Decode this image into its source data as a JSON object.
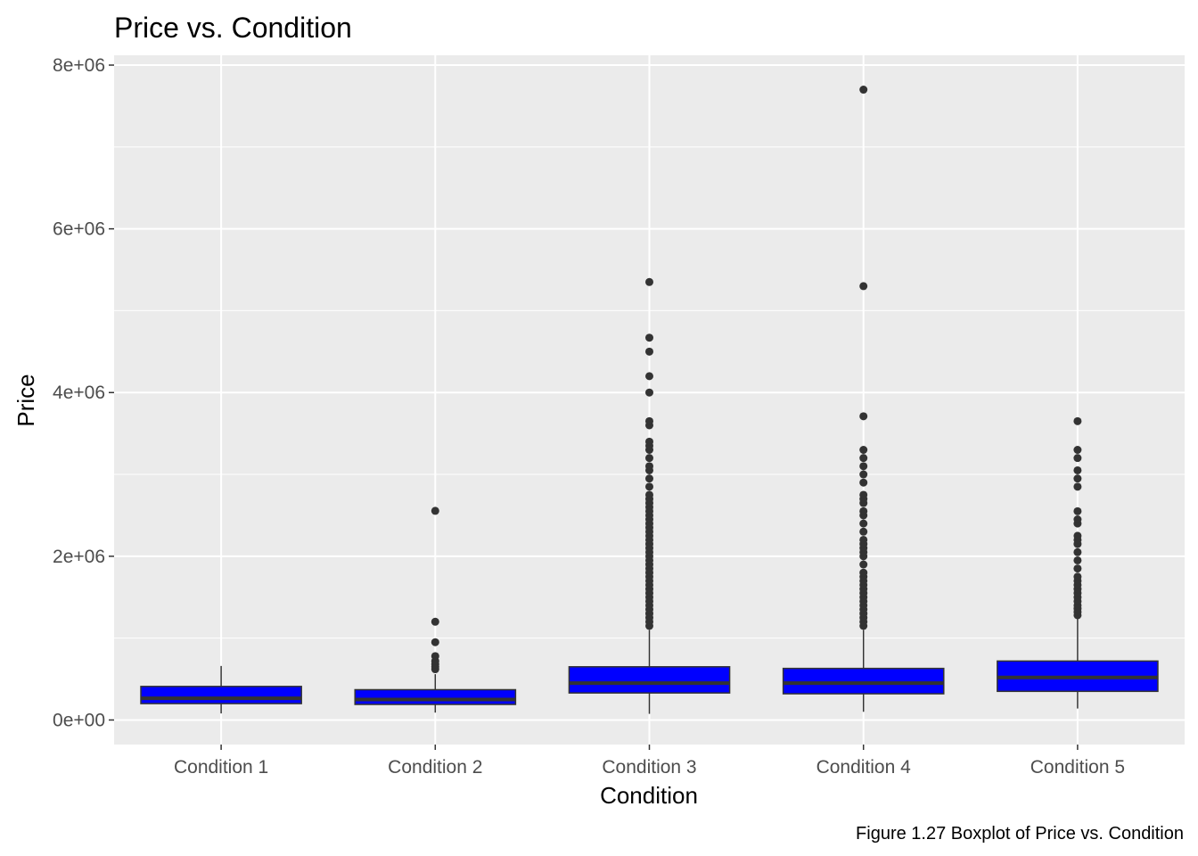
{
  "chart_data": {
    "type": "boxplot",
    "title": "Price vs. Condition",
    "xlabel": "Condition",
    "ylabel": "Price",
    "caption": "Figure 1.27 Boxplot of Price vs. Condition",
    "ylim": [
      -300000,
      8120000
    ],
    "yticks": [
      0,
      2000000,
      4000000,
      6000000,
      8000000
    ],
    "ytick_labels": [
      "0e+00",
      "2e+06",
      "4e+06",
      "6e+06",
      "8e+06"
    ],
    "categories": [
      "Condition 1",
      "Condition 2",
      "Condition 3",
      "Condition 4",
      "Condition 5"
    ],
    "grid": true,
    "fill_color": "#0000ff",
    "outline_color": "#333333",
    "panel_background": "#ebebeb",
    "grid_color": "#ffffff",
    "boxes": [
      {
        "category": "Condition 1",
        "whisker_low": 80000,
        "q1": 200000,
        "median": 265000,
        "q3": 410000,
        "whisker_high": 660000,
        "outliers": []
      },
      {
        "category": "Condition 2",
        "whisker_low": 90000,
        "q1": 190000,
        "median": 250000,
        "q3": 370000,
        "whisker_high": 560000,
        "outliers": [
          620000,
          650000,
          680000,
          720000,
          780000,
          950000,
          1200000,
          2555000
        ]
      },
      {
        "category": "Condition 3",
        "whisker_low": 75000,
        "q1": 330000,
        "median": 450000,
        "q3": 650000,
        "whisker_high": 1100000,
        "outliers": [
          1150000,
          1200000,
          1250000,
          1300000,
          1350000,
          1400000,
          1450000,
          1500000,
          1550000,
          1600000,
          1650000,
          1700000,
          1750000,
          1800000,
          1850000,
          1900000,
          1950000,
          2000000,
          2050000,
          2100000,
          2150000,
          2200000,
          2250000,
          2300000,
          2350000,
          2400000,
          2450000,
          2500000,
          2550000,
          2600000,
          2650000,
          2700000,
          2750000,
          2850000,
          2950000,
          3050000,
          3100000,
          3200000,
          3300000,
          3350000,
          3400000,
          3600000,
          3650000,
          4000000,
          4200000,
          4500000,
          4670000,
          5350000
        ]
      },
      {
        "category": "Condition 4",
        "whisker_low": 100000,
        "q1": 320000,
        "median": 450000,
        "q3": 630000,
        "whisker_high": 1100000,
        "outliers": [
          1150000,
          1200000,
          1250000,
          1300000,
          1350000,
          1400000,
          1450000,
          1500000,
          1550000,
          1600000,
          1650000,
          1700000,
          1750000,
          1800000,
          1900000,
          2000000,
          2050000,
          2100000,
          2150000,
          2200000,
          2300000,
          2400000,
          2500000,
          2550000,
          2650000,
          2700000,
          2750000,
          2900000,
          3000000,
          3100000,
          3200000,
          3300000,
          3710000,
          5300000,
          7700000
        ]
      },
      {
        "category": "Condition 5",
        "whisker_low": 140000,
        "q1": 350000,
        "median": 520000,
        "q3": 720000,
        "whisker_high": 1250000,
        "outliers": [
          1280000,
          1320000,
          1360000,
          1400000,
          1450000,
          1500000,
          1550000,
          1600000,
          1650000,
          1700000,
          1750000,
          1850000,
          1950000,
          2050000,
          2150000,
          2200000,
          2250000,
          2400000,
          2450000,
          2550000,
          2850000,
          2950000,
          3050000,
          3200000,
          3300000,
          3650000
        ]
      }
    ]
  }
}
